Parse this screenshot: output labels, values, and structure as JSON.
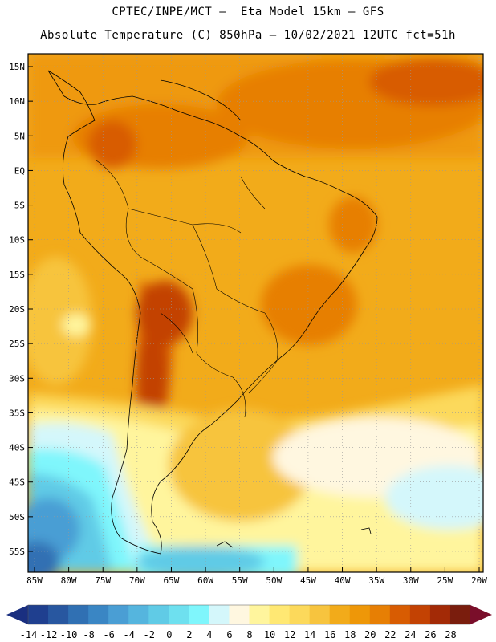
{
  "header": {
    "line1": "CPTEC/INPE/MCT —  Eta Model 15km — GFS",
    "line2": "Absolute Temperature (C) 850hPa — 10/02/2021 12UTC fct=51h"
  },
  "map": {
    "lat_labels": [
      "15N",
      "10N",
      "5N",
      "EQ",
      "5S",
      "10S",
      "15S",
      "20S",
      "25S",
      "30S",
      "35S",
      "40S",
      "45S",
      "50S",
      "55S"
    ],
    "lon_labels": [
      "85W",
      "80W",
      "75W",
      "70W",
      "65W",
      "60W",
      "55W",
      "50W",
      "45W",
      "40W",
      "35W",
      "30W",
      "25W",
      "20W"
    ]
  },
  "colorbar": {
    "labels": [
      "-14",
      "-12",
      "-10",
      "-8",
      "-6",
      "-4",
      "-2",
      "0",
      "2",
      "4",
      "6",
      "8",
      "10",
      "12",
      "14",
      "16",
      "18",
      "20",
      "22",
      "24",
      "26",
      "28"
    ],
    "colors": [
      "#1f3f8f",
      "#2857a0",
      "#3070b3",
      "#3a86c4",
      "#4a9ed4",
      "#55b5de",
      "#60cbe6",
      "#6ee0ef",
      "#7ff6fc",
      "#d4f7fb",
      "#fff7e0",
      "#fff59d",
      "#ffe873",
      "#fcd95b",
      "#f7c43e",
      "#f2ab1a",
      "#ee9708",
      "#e77f04",
      "#d85c02",
      "#c34203",
      "#a32a06",
      "#7a1d0d"
    ],
    "under_color": "#1a2f80",
    "over_color": "#7a0e2a"
  }
}
